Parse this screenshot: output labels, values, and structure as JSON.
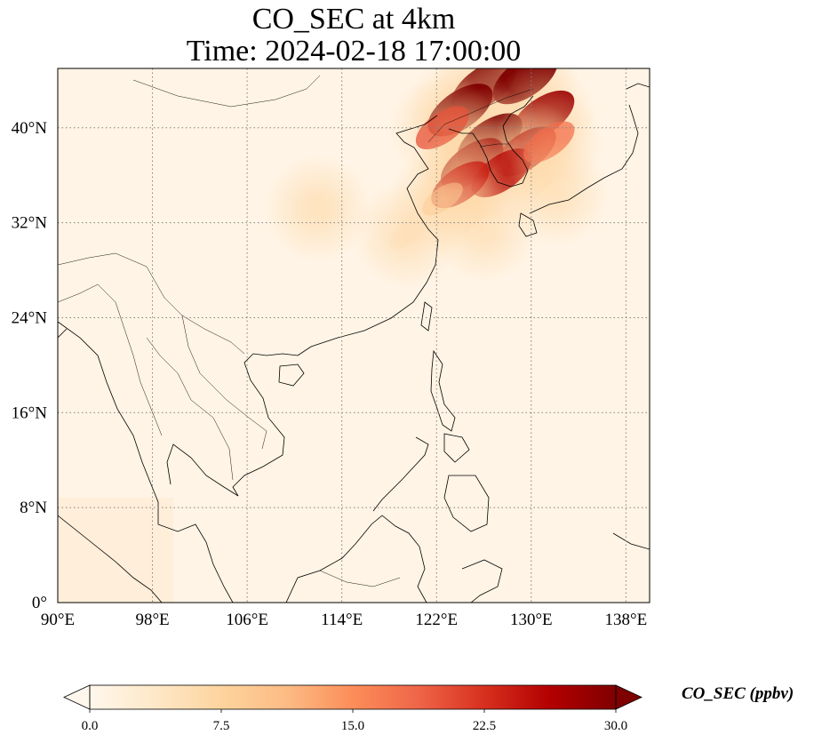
{
  "title": {
    "line1": "CO_SEC at 4km",
    "line2": "Time: 2024-02-18 17:00:00"
  },
  "map": {
    "projection": "PlateCarree",
    "lon_range": [
      90,
      140
    ],
    "lat_range": [
      0,
      45
    ],
    "gridlines": "dotted grey",
    "lon_ticks": [
      {
        "value": 90,
        "label": "90°E"
      },
      {
        "value": 98,
        "label": "98°E"
      },
      {
        "value": 106,
        "label": "106°E"
      },
      {
        "value": 114,
        "label": "114°E"
      },
      {
        "value": 122,
        "label": "122°E"
      },
      {
        "value": 130,
        "label": "130°E"
      },
      {
        "value": 138,
        "label": "138°E"
      }
    ],
    "lat_ticks": [
      {
        "value": 0,
        "label": "0°"
      },
      {
        "value": 8,
        "label": "8°N"
      },
      {
        "value": 16,
        "label": "16°N"
      },
      {
        "value": 24,
        "label": "24°N"
      },
      {
        "value": 32,
        "label": "32°N"
      },
      {
        "value": 40,
        "label": "40°N"
      }
    ]
  },
  "colorbar": {
    "label": "CO_SEC (ppbv)",
    "colormap": "OrRd",
    "extend": "both",
    "min": 0,
    "max": 30,
    "ticks": [
      {
        "value": 0,
        "label": "0.0"
      },
      {
        "value": 7.5,
        "label": "7.5"
      },
      {
        "value": 15,
        "label": "15.0"
      },
      {
        "value": 22.5,
        "label": "22.5"
      },
      {
        "value": 30,
        "label": "30.0"
      }
    ],
    "colors": [
      "#fff7ec",
      "#fee8c8",
      "#fdd49e",
      "#fdbb84",
      "#fc8d59",
      "#ef6548",
      "#d7301f",
      "#b30000",
      "#7f0000"
    ]
  },
  "plumes": [
    {
      "lon": 126,
      "lat": 43.5,
      "value": 30
    },
    {
      "lon": 129.5,
      "lat": 44.2,
      "value": 30
    },
    {
      "lon": 124,
      "lat": 41.5,
      "value": 30
    },
    {
      "lon": 131,
      "lat": 41.0,
      "value": 28
    },
    {
      "lon": 126.5,
      "lat": 39.0,
      "value": 30
    },
    {
      "lon": 129.5,
      "lat": 38.0,
      "value": 27
    },
    {
      "lon": 125,
      "lat": 37.0,
      "value": 28
    },
    {
      "lon": 122.5,
      "lat": 40.0,
      "value": 20
    },
    {
      "lon": 127.5,
      "lat": 36.2,
      "value": 26
    },
    {
      "lon": 124,
      "lat": 35.2,
      "value": 24
    },
    {
      "lon": 131.5,
      "lat": 38.8,
      "value": 18
    },
    {
      "lon": 122.5,
      "lat": 34.0,
      "value": 9
    },
    {
      "lon": 119.5,
      "lat": 31.0,
      "value": 5
    },
    {
      "lon": 112,
      "lat": 33.2,
      "value": 4
    },
    {
      "lon": 126,
      "lat": 31.5,
      "value": 4
    },
    {
      "lon": 132,
      "lat": 34.5,
      "value": 4
    }
  ]
}
